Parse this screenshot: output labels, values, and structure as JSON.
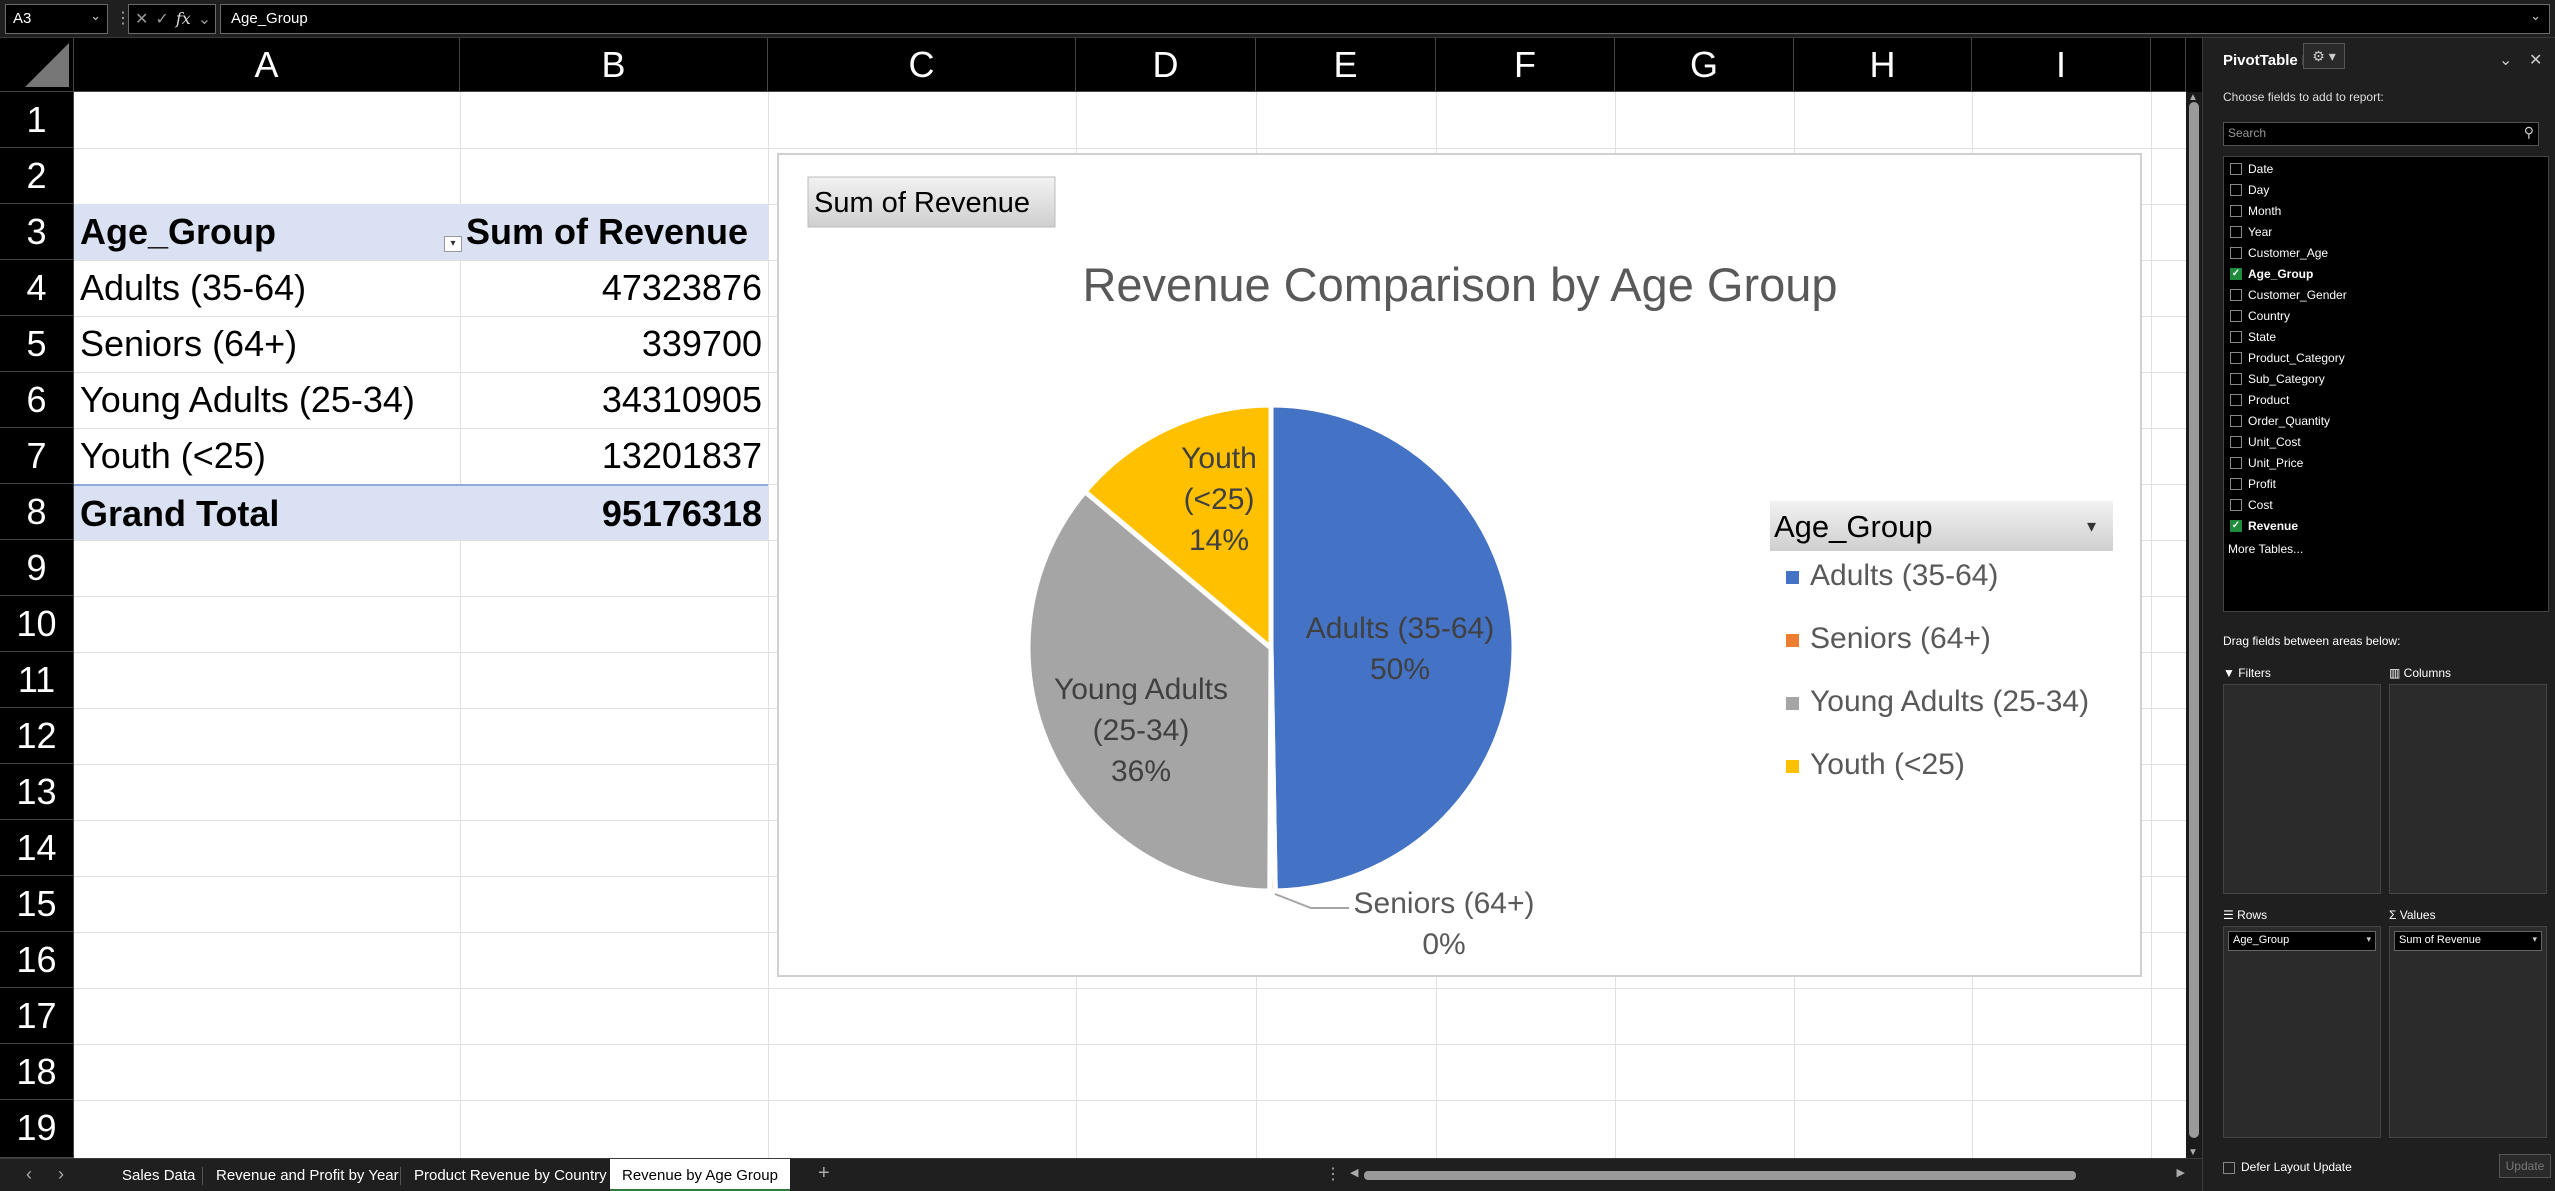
{
  "formula_bar": {
    "name_box": "A3",
    "cancel_icon": "✕",
    "enter_icon": "✓",
    "fx_label": "fx",
    "formula_value": "Age_Group"
  },
  "columns": [
    "A",
    "B",
    "C",
    "D",
    "E",
    "F",
    "G",
    "H",
    "I"
  ],
  "rows": [
    "1",
    "2",
    "3",
    "4",
    "5",
    "6",
    "7",
    "8",
    "9",
    "10",
    "11",
    "12",
    "13",
    "14",
    "15",
    "16",
    "17",
    "18",
    "19"
  ],
  "pivot_table": {
    "header_row_label": "Age_Group",
    "header_value_label": "Sum of Revenue",
    "rows": [
      {
        "label": "Adults (35-64)",
        "value": "47323876"
      },
      {
        "label": "Seniors (64+)",
        "value": "339700"
      },
      {
        "label": "Young Adults (25-34)",
        "value": "34310905"
      },
      {
        "label": "Youth (<25)",
        "value": "13201837"
      }
    ],
    "grand_total_label": "Grand Total",
    "grand_total_value": "95176318"
  },
  "chart_data": {
    "type": "pie",
    "title": "Revenue Comparison by Age Group",
    "field_button": "Sum of Revenue",
    "legend_title": "Age_Group",
    "legend_position": "right",
    "categories": [
      "Adults (35-64)",
      "Seniors (64+)",
      "Young Adults (25-34)",
      "Youth (<25)"
    ],
    "values": [
      47323876,
      339700,
      34310905,
      13201837
    ],
    "percent_labels": [
      "50%",
      "0%",
      "36%",
      "14%"
    ],
    "data_labels": [
      [
        "Adults (35-64)",
        "50%"
      ],
      [
        "Seniors (64+)",
        "0%"
      ],
      [
        "Young Adults",
        "(25-34)",
        "36%"
      ],
      [
        "Youth",
        "(<25)",
        "14%"
      ]
    ],
    "colors": [
      "#4472C4",
      "#ED7D31",
      "#A5A5A5",
      "#FFC000"
    ]
  },
  "sheet_tabs": [
    {
      "label": "Sales Data",
      "active": false
    },
    {
      "label": "Revenue and Profit by Year",
      "active": false
    },
    {
      "label": "Product Revenue by Country",
      "active": false
    },
    {
      "label": "Revenue by Age Group",
      "active": true
    }
  ],
  "add_sheet_icon": "+",
  "pivot_panel": {
    "title": "PivotTable Fields",
    "subtitle": "Choose fields to add to report:",
    "search_placeholder": "Search",
    "fields": [
      {
        "label": "Date",
        "checked": false
      },
      {
        "label": "Day",
        "checked": false
      },
      {
        "label": "Month",
        "checked": false
      },
      {
        "label": "Year",
        "checked": false
      },
      {
        "label": "Customer_Age",
        "checked": false
      },
      {
        "label": "Age_Group",
        "checked": true
      },
      {
        "label": "Customer_Gender",
        "checked": false
      },
      {
        "label": "Country",
        "checked": false
      },
      {
        "label": "State",
        "checked": false
      },
      {
        "label": "Product_Category",
        "checked": false
      },
      {
        "label": "Sub_Category",
        "checked": false
      },
      {
        "label": "Product",
        "checked": false
      },
      {
        "label": "Order_Quantity",
        "checked": false
      },
      {
        "label": "Unit_Cost",
        "checked": false
      },
      {
        "label": "Unit_Price",
        "checked": false
      },
      {
        "label": "Profit",
        "checked": false
      },
      {
        "label": "Cost",
        "checked": false
      },
      {
        "label": "Revenue",
        "checked": true
      }
    ],
    "more_tables": "More Tables...",
    "drag_label": "Drag fields between areas below:",
    "filters_label": "Filters",
    "columns_label": "Columns",
    "rows_label": "Rows",
    "values_label": "Values",
    "rows_chip": "Age_Group",
    "values_chip": "Sum of Revenue",
    "defer_label": "Defer Layout Update",
    "update_button": "Update"
  }
}
